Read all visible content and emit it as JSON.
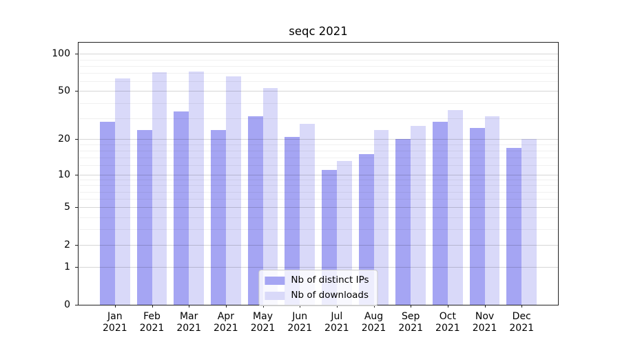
{
  "title": "seqc 2021",
  "chart_data": {
    "type": "bar",
    "title": "seqc 2021",
    "categories": [
      "Jan\n2021",
      "Feb\n2021",
      "Mar\n2021",
      "Apr\n2021",
      "May\n2021",
      "Jun\n2021",
      "Jul\n2021",
      "Aug\n2021",
      "Sep\n2021",
      "Oct\n2021",
      "Nov\n2021",
      "Dec\n2021"
    ],
    "series": [
      {
        "name": "Nb of distinct IPs",
        "color": "#a5a5f3",
        "values": [
          28,
          24,
          34,
          24,
          31,
          21,
          11,
          15,
          20,
          28,
          25,
          17
        ]
      },
      {
        "name": "Nb of downloads",
        "color": "#d9d9f9",
        "values": [
          63,
          71,
          72,
          66,
          53,
          27,
          13,
          24,
          26,
          35,
          31,
          20
        ]
      }
    ],
    "xlabel": "",
    "ylabel": "",
    "yscale": "log1p",
    "yticks": [
      0,
      1,
      2,
      5,
      10,
      20,
      50,
      100
    ],
    "yticks_minor": [
      3,
      4,
      6,
      7,
      8,
      9,
      12,
      14,
      16,
      18,
      30,
      40,
      60,
      70,
      80,
      90
    ],
    "ylim": [
      0,
      123
    ],
    "grid": "y-only",
    "legend_position": "lower center",
    "background": "#ffffff"
  }
}
